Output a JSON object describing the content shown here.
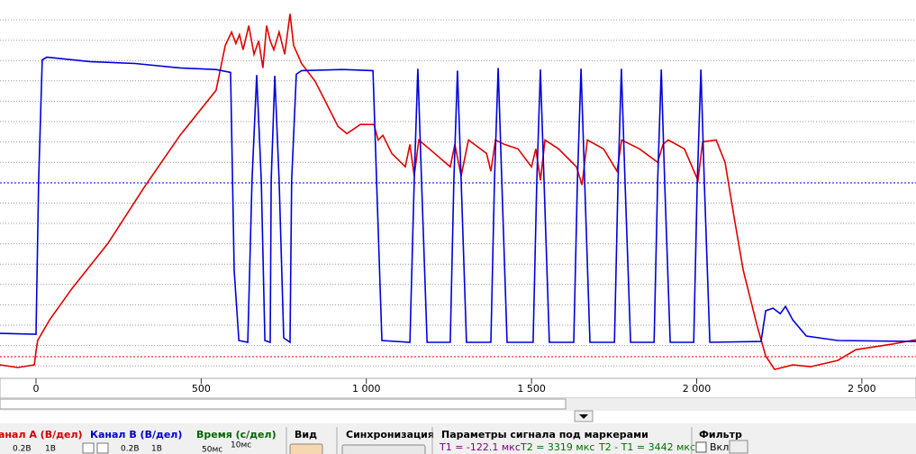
{
  "chart_data": {
    "type": "line",
    "xlim": [
      -109,
      2664
    ],
    "ylim": [
      -9.6,
      9.0
    ],
    "xticks": [
      0,
      500,
      {
        "value": 1000,
        "label": "1 000"
      },
      {
        "value": 1500,
        "label": "1 500"
      },
      {
        "value": 2000,
        "label": "2 000"
      },
      {
        "value": 2500,
        "label": "2 500"
      }
    ],
    "grid": true,
    "series": [
      {
        "name": "Канал А",
        "color": "#e00000",
        "x": [
          -109,
          -55,
          -5,
          0,
          5,
          41,
          109,
          218,
          327,
          436,
          545,
          573,
          592,
          605,
          616,
          627,
          644,
          660,
          674,
          687,
          698,
          709,
          720,
          736,
          753,
          769,
          780,
          804,
          845,
          873,
          914,
          941,
          982,
          1023,
          1036,
          1050,
          1077,
          1118,
          1132,
          1145,
          1159,
          1200,
          1254,
          1268,
          1287,
          1309,
          1364,
          1377,
          1391,
          1418,
          1459,
          1500,
          1513,
          1527,
          1541,
          1582,
          1636,
          1653,
          1669,
          1718,
          1759,
          1773,
          1827,
          1882,
          1898,
          1914,
          1963,
          2004,
          2018,
          2059,
          2086,
          2113,
          2141,
          2182,
          2209,
          2236,
          2291,
          2345,
          2427,
          2482,
          2591,
          2664
        ],
        "values": [
          -8.94,
          -9.07,
          -8.94,
          -8.27,
          -7.74,
          -6.73,
          -5.18,
          -2.96,
          -0.22,
          2.35,
          4.56,
          6.77,
          7.43,
          6.86,
          7.3,
          6.55,
          7.74,
          6.33,
          6.99,
          5.66,
          7.74,
          6.99,
          6.55,
          7.43,
          6.33,
          8.32,
          6.77,
          5.88,
          5.0,
          4.12,
          2.79,
          2.43,
          2.88,
          2.88,
          2.12,
          2.35,
          1.46,
          0.8,
          1.9,
          0.35,
          2.12,
          1.55,
          0.8,
          1.9,
          0.35,
          2.12,
          1.46,
          0.58,
          2.12,
          1.9,
          1.68,
          0.8,
          1.68,
          0.13,
          2.12,
          1.68,
          0.8,
          -0.09,
          2.12,
          1.68,
          0.58,
          2.12,
          1.68,
          1.02,
          1.9,
          2.12,
          1.68,
          0.13,
          2.03,
          2.12,
          1.02,
          -1.64,
          -4.29,
          -6.95,
          -8.5,
          -9.16,
          -8.94,
          -9.03,
          -8.72,
          -8.19,
          -7.92,
          -7.7
        ]
      },
      {
        "name": "Канал В",
        "color": "#0000dd",
        "x": [
          -109,
          0,
          8,
          19,
          33,
          164,
          300,
          436,
          545,
          589,
          600,
          614,
          641,
          654,
          668,
          682,
          693,
          709,
          712,
          723,
          736,
          750,
          769,
          774,
          788,
          804,
          927,
          1020,
          1031,
          1047,
          1132,
          1145,
          1156,
          1167,
          1184,
          1254,
          1265,
          1276,
          1287,
          1303,
          1377,
          1388,
          1399,
          1410,
          1426,
          1505,
          1516,
          1527,
          1538,
          1554,
          1628,
          1639,
          1650,
          1661,
          1677,
          1751,
          1762,
          1772,
          1783,
          1800,
          1871,
          1882,
          1893,
          1903,
          1920,
          1991,
          2002,
          2013,
          2023,
          2040,
          2195,
          2209,
          2231,
          2253,
          2269,
          2291,
          2332,
          2427,
          2664
        ],
        "values": [
          -7.39,
          -7.43,
          0.13,
          6.06,
          6.19,
          5.97,
          5.88,
          5.66,
          5.58,
          5.44,
          -4.29,
          -7.74,
          -7.83,
          0.13,
          5.31,
          0.13,
          -7.74,
          -7.83,
          0.13,
          5.27,
          0.13,
          -7.61,
          -7.83,
          0.13,
          5.35,
          5.53,
          5.58,
          5.53,
          0.13,
          -7.74,
          -7.83,
          0.13,
          5.62,
          0.13,
          -7.83,
          -7.83,
          0.13,
          5.53,
          0.13,
          -7.83,
          -7.83,
          0.13,
          5.66,
          0.13,
          -7.83,
          -7.83,
          0.13,
          5.58,
          0.13,
          -7.83,
          -7.83,
          0.13,
          5.62,
          0.13,
          -7.83,
          -7.83,
          0.13,
          5.62,
          0.13,
          -7.83,
          -7.83,
          0.13,
          5.58,
          0.13,
          -7.83,
          -7.83,
          0.13,
          5.58,
          0.13,
          -7.83,
          -7.79,
          -6.28,
          -6.15,
          -6.42,
          -6.06,
          -6.73,
          -7.52,
          -7.74,
          -7.79
        ]
      }
    ]
  },
  "panel": {
    "channel_a": {
      "title": "анал А (В/дел)",
      "scale": "0.2В",
      "range": "1В"
    },
    "channel_b": {
      "title": "Канал В (В/дел)",
      "scale": "0.2В",
      "range": "1В"
    },
    "time": {
      "title": "Время (с/дел)",
      "scale": "50мс",
      "step": "10мс"
    },
    "view": {
      "title": "Вид"
    },
    "sync": {
      "title": "Синхронизация"
    },
    "markers": {
      "title": "Параметры сигнала под маркерами",
      "t1": "T1 = -122.1 мкс",
      "t2": "T2 = 3319 мкс",
      "dt": "T2 - T1 = 3442 мкс"
    },
    "filter": {
      "title": "Фильтр",
      "on": "Вкл"
    }
  }
}
